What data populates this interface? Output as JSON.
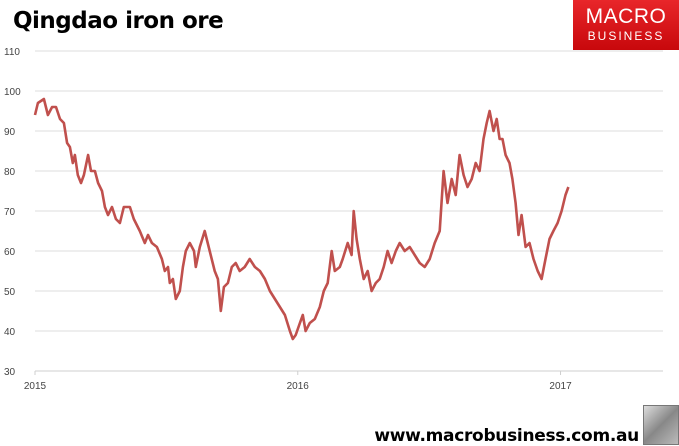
{
  "chart_data": {
    "type": "line",
    "title": "Qingdao iron ore",
    "xlabel": "",
    "ylabel": "",
    "ylim": [
      30,
      110
    ],
    "xlim": [
      2015,
      2017.39
    ],
    "yticks": [
      "30",
      "40",
      "50",
      "60",
      "70",
      "80",
      "90",
      "100",
      "110"
    ],
    "xticks": [
      "2015",
      "2016",
      "2017"
    ],
    "grid": true,
    "color": "#c0504d",
    "series": [
      {
        "name": "Qingdao iron ore",
        "x": [
          2015.0,
          2015.011,
          2015.034,
          2015.049,
          2015.065,
          2015.08,
          2015.095,
          2015.11,
          2015.122,
          2015.133,
          2015.144,
          2015.152,
          2015.163,
          2015.175,
          2015.186,
          2015.202,
          2015.213,
          2015.228,
          2015.24,
          2015.255,
          2015.266,
          2015.278,
          2015.293,
          2015.308,
          2015.323,
          2015.338,
          2015.361,
          2015.376,
          2015.399,
          2015.418,
          2015.43,
          2015.445,
          2015.464,
          2015.483,
          2015.494,
          2015.506,
          2015.513,
          2015.525,
          2015.536,
          2015.551,
          2015.563,
          2015.574,
          2015.589,
          2015.605,
          2015.612,
          2015.627,
          2015.646,
          2015.665,
          2015.684,
          2015.696,
          2015.707,
          2015.719,
          2015.734,
          2015.749,
          2015.764,
          2015.779,
          2015.798,
          2015.817,
          2015.837,
          2015.856,
          2015.875,
          2015.894,
          2015.913,
          2015.932,
          2015.951,
          2015.97,
          2015.981,
          2015.992,
          2016.008,
          2016.019,
          2016.03,
          2016.046,
          2016.065,
          2016.084,
          2016.099,
          2016.114,
          2016.129,
          2016.141,
          2016.16,
          2016.171,
          2016.19,
          2016.205,
          2016.213,
          2016.224,
          2016.236,
          2016.251,
          2016.266,
          2016.281,
          2016.297,
          2016.312,
          2016.327,
          2016.342,
          2016.357,
          2016.373,
          2016.388,
          2016.407,
          2016.426,
          2016.445,
          2016.464,
          2016.483,
          2016.502,
          2016.521,
          2016.54,
          2016.555,
          2016.57,
          2016.586,
          2016.601,
          2016.616,
          2016.631,
          2016.646,
          2016.662,
          2016.677,
          2016.692,
          2016.707,
          2016.719,
          2016.73,
          2016.745,
          2016.757,
          2016.768,
          2016.779,
          2016.791,
          2016.806,
          2016.817,
          2016.829,
          2016.84,
          2016.852,
          2016.867,
          2016.882,
          2016.897,
          2016.913,
          2016.928,
          2016.943,
          2016.958,
          2016.973,
          2016.989,
          2017.004,
          2017.019,
          2017.03
        ],
        "values": [
          94,
          97,
          98,
          94,
          96,
          96,
          93,
          92,
          87,
          86,
          82,
          84,
          79,
          77,
          79,
          84,
          80,
          80,
          77,
          75,
          71,
          69,
          71,
          68,
          67,
          71,
          71,
          68,
          65,
          62,
          64,
          62,
          61,
          58,
          55,
          56,
          52,
          53,
          48,
          50,
          56,
          60,
          62,
          60,
          56,
          61,
          65,
          60,
          55,
          53,
          45,
          51,
          52,
          56,
          57,
          55,
          56,
          58,
          56,
          55,
          53,
          50,
          48,
          46,
          44,
          40,
          38,
          39,
          42,
          44,
          40,
          42,
          43,
          46,
          50,
          52,
          60,
          55,
          56,
          58,
          62,
          59,
          70,
          63,
          58,
          53,
          55,
          50,
          52,
          53,
          56,
          60,
          57,
          60,
          62,
          60,
          61,
          59,
          57,
          56,
          58,
          62,
          65,
          80,
          72,
          78,
          74,
          84,
          79,
          76,
          78,
          82,
          80,
          88,
          92,
          95,
          90,
          93,
          88,
          88,
          84,
          82,
          78,
          72,
          64,
          69,
          61,
          62,
          58,
          55,
          53,
          58,
          63,
          65,
          67,
          70,
          74,
          76
        ]
      }
    ]
  },
  "logo": {
    "line1": "MACRO",
    "line2": "BUSINESS"
  },
  "footer": "www.macrobusiness.com.au"
}
